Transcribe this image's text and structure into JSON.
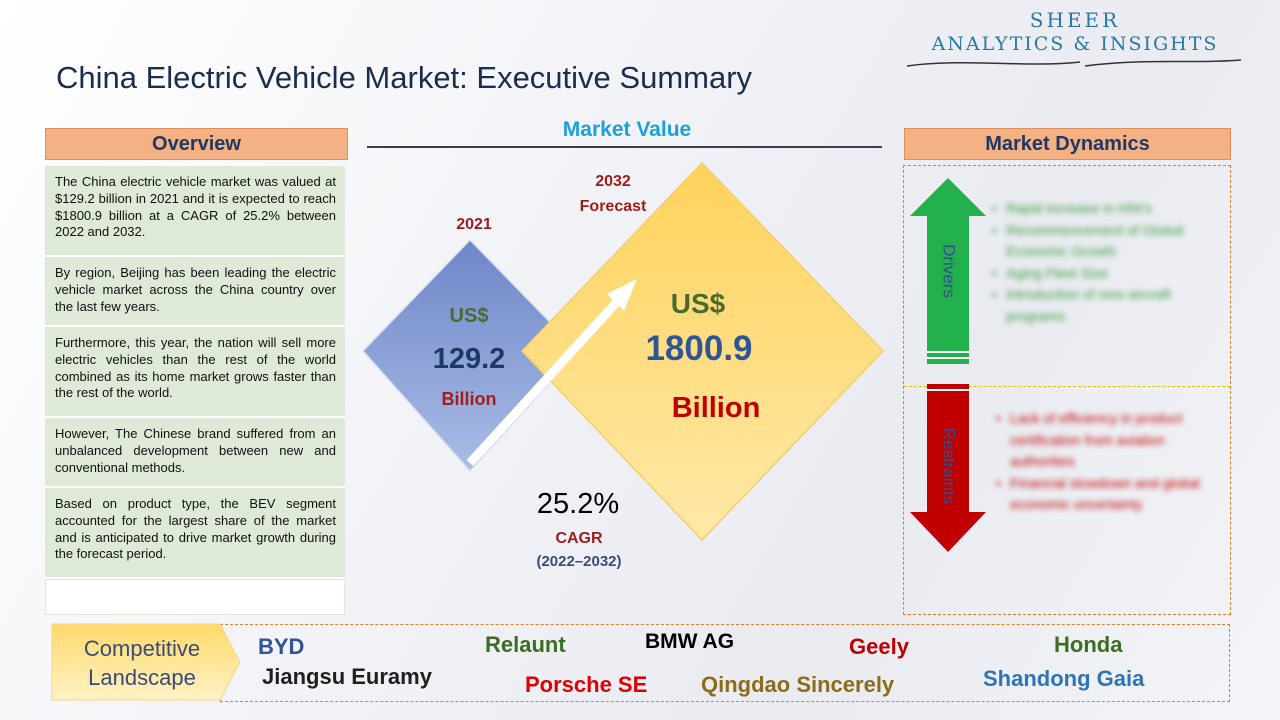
{
  "brand": {
    "line1": "SHEER",
    "line2": "ANALYTICS & INSIGHTS"
  },
  "title": "China Electric Vehicle Market: Executive Summary",
  "overview": {
    "header": "Overview",
    "items": [
      "The China electric vehicle market was valued at $129.2 billion in 2021 and it is expected to reach $1800.9 billion at a CAGR of 25.2% between 2022 and 2032.",
      "By region, Beijing has been leading the electric vehicle market across the China country over the last few years.",
      "Furthermore, this year, the nation will sell more electric vehicles than the rest of the world combined as its home market grows faster than the rest of the world.",
      "However, The Chinese brand suffered from an unbalanced development between new and conventional methods.",
      "Based on product type, the BEV segment accounted for the largest share of the market and is anticipated to drive market growth during the forecast period."
    ]
  },
  "market_value": {
    "title": "Market Value",
    "left": {
      "year": "2021",
      "currency": "US$",
      "value": "129.2",
      "unit": "Billion"
    },
    "right": {
      "year": "2032",
      "year_sub": "Forecast",
      "currency": "US$",
      "value": "1800.9",
      "unit": "Billion"
    },
    "cagr": {
      "value": "25.2%",
      "label": "CAGR",
      "period": "(2022–2032)"
    }
  },
  "dynamics": {
    "header": "Market Dynamics",
    "drivers": {
      "label": "Drivers",
      "items": [
        "Rapid increase in HNI's",
        "Recommencement of Global Economic Growth",
        "Aging Fleet Size",
        "Introduction of new aircraft programs"
      ]
    },
    "restraints": {
      "label": "Restraints",
      "items": [
        "Lack of efficiency in product certification from aviation authorities",
        "Financial slowdown and global economic uncertainty"
      ]
    }
  },
  "competitive": {
    "label_line1": "Competitive",
    "label_line2": "Landscape",
    "companies": [
      {
        "name": "BYD",
        "color": "#2f5597"
      },
      {
        "name": "Relaunt",
        "color": "#3b6e22"
      },
      {
        "name": "BMW AG",
        "color": "#000000"
      },
      {
        "name": "Geely",
        "color": "#c00000"
      },
      {
        "name": "Honda",
        "color": "#3b6e22"
      },
      {
        "name": "Jiangsu Euramy",
        "color": "#1f1f1f"
      },
      {
        "name": "Porsche SE",
        "color": "#e00000"
      },
      {
        "name": "Qingdao Sincerely",
        "color": "#8a6d1a"
      },
      {
        "name": "Shandong Gaia",
        "color": "#2e75b6"
      }
    ]
  },
  "colors": {
    "accent_orange": "#f4b183",
    "navy": "#1f3864",
    "green_arrow": "#22b14c",
    "red_arrow": "#c00000",
    "diamond_blue": "#8faadc",
    "diamond_yellow": "#ffd966"
  }
}
